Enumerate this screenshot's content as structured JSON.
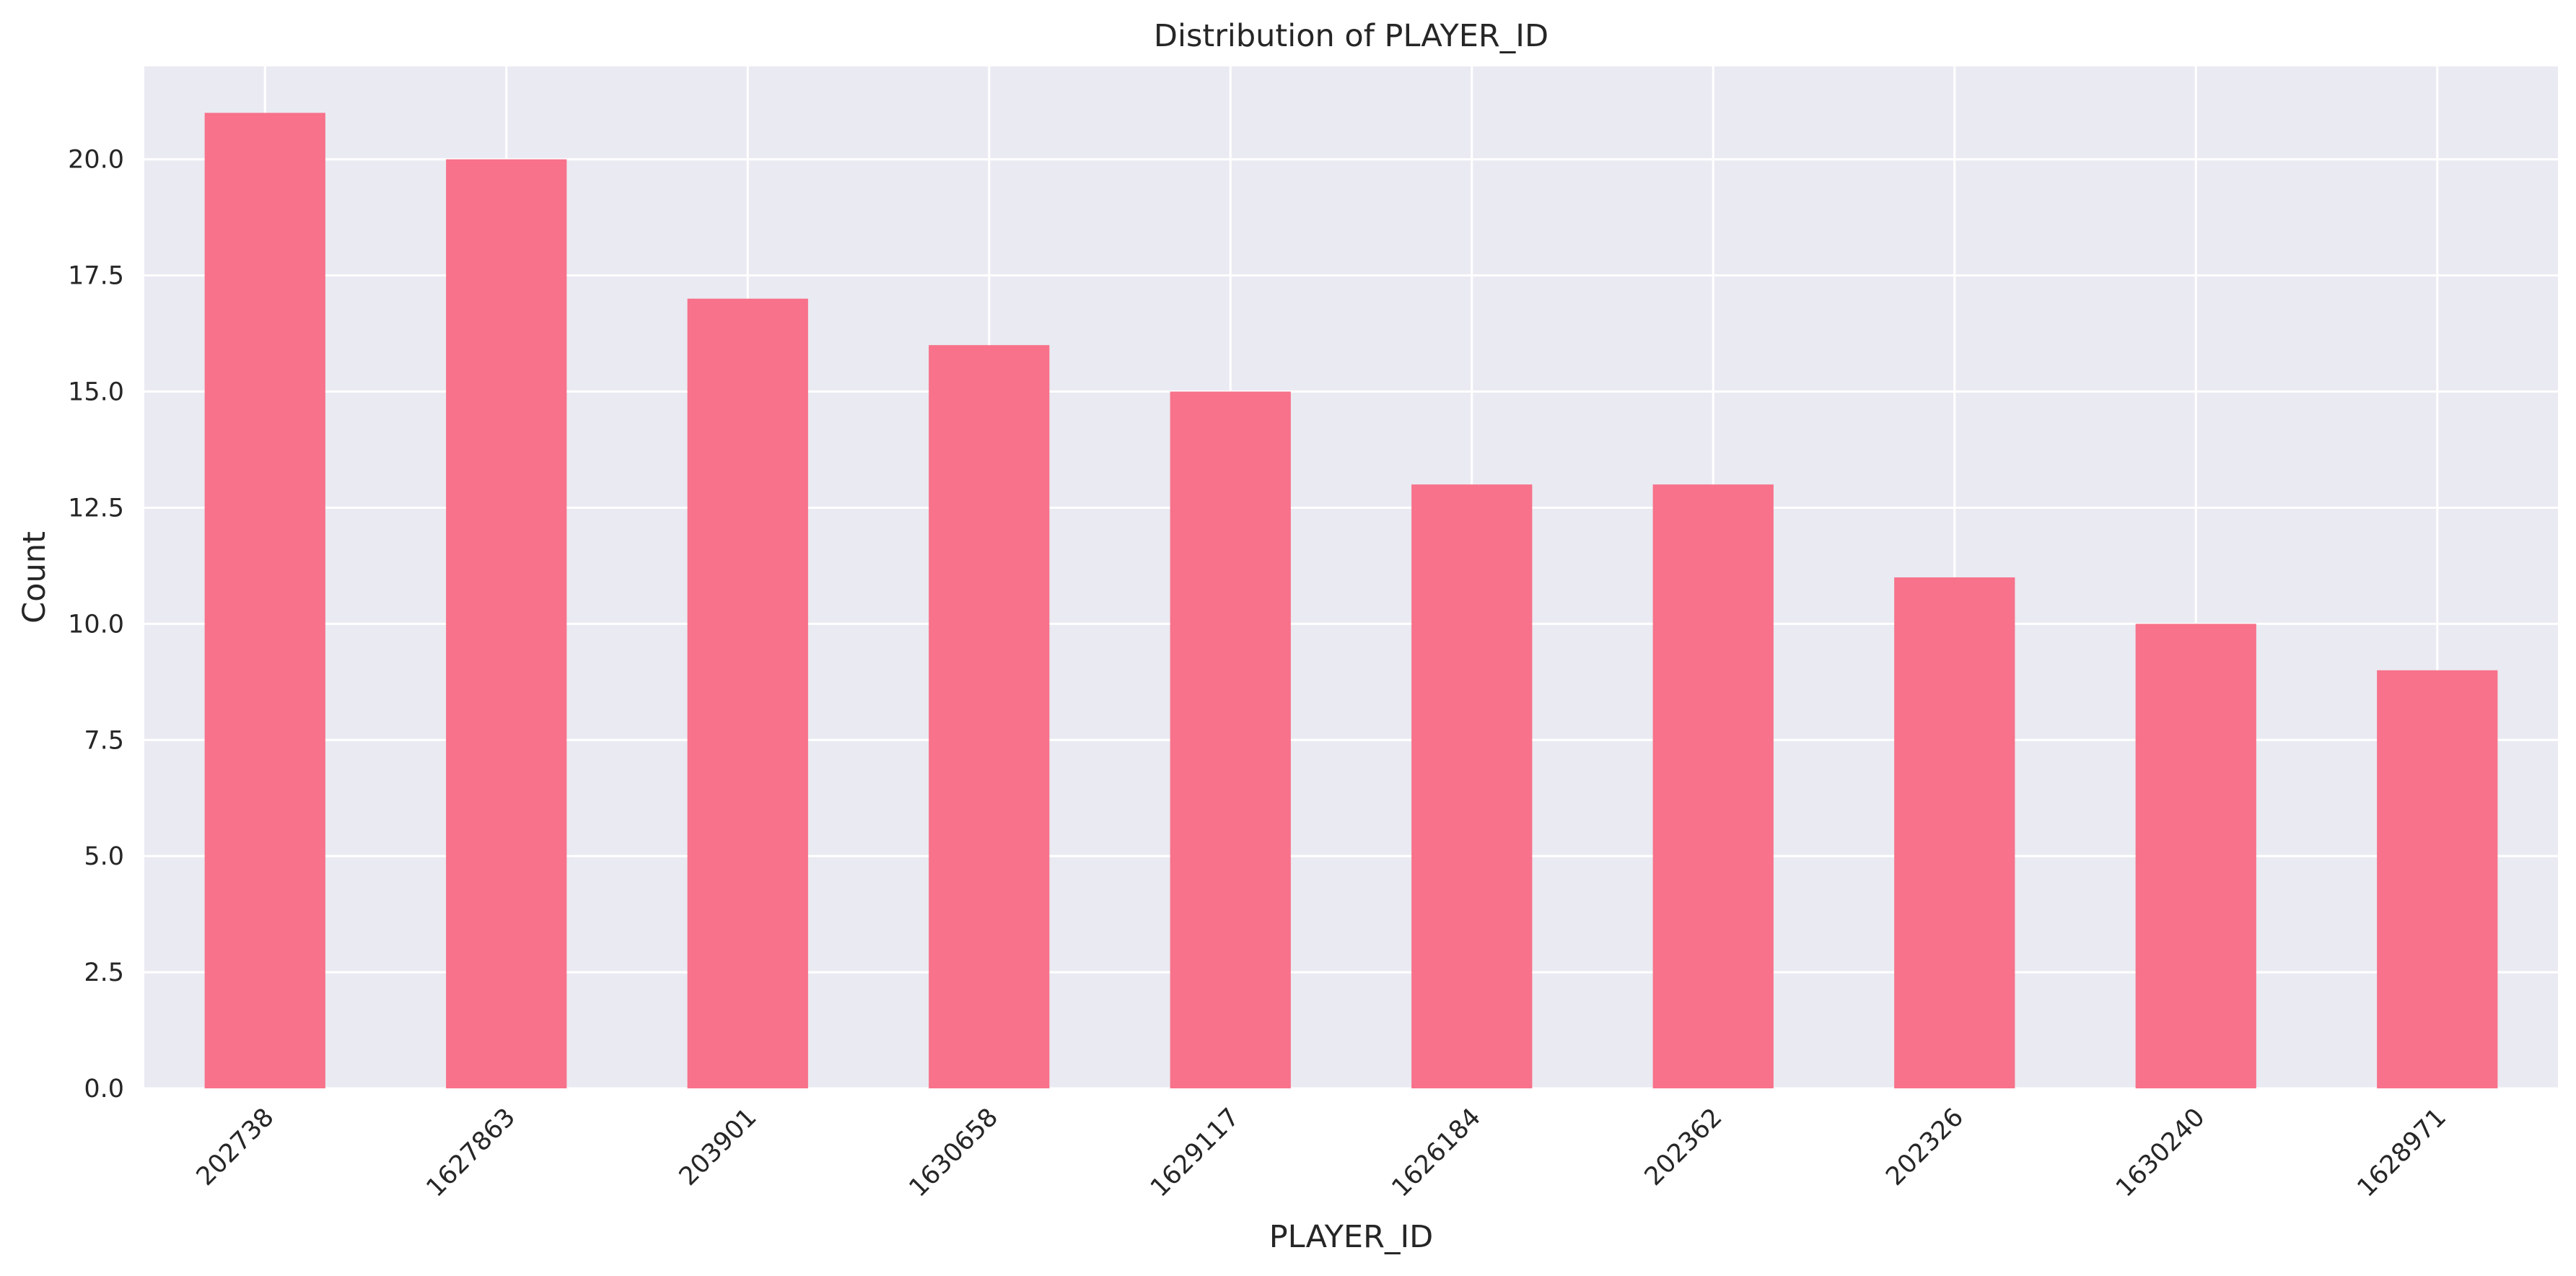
{
  "chart_data": {
    "type": "bar",
    "title": "Distribution of PLAYER_ID",
    "xlabel": "PLAYER_ID",
    "ylabel": "Count",
    "categories": [
      "202738",
      "1627863",
      "203901",
      "1630658",
      "1629117",
      "1626184",
      "202362",
      "202326",
      "1630240",
      "1628971"
    ],
    "values": [
      21,
      20,
      17,
      16,
      15,
      13,
      13,
      11,
      10,
      9
    ],
    "ylim": [
      0,
      22
    ],
    "yticks": [
      "0.0",
      "2.5",
      "5.0",
      "7.5",
      "10.0",
      "12.5",
      "15.0",
      "17.5",
      "20.0"
    ],
    "grid": true,
    "legend": "none",
    "colors": {
      "bar": "#f7728a",
      "plot_background": "#eaeaf2",
      "grid": "#ffffff",
      "text": "#262626"
    }
  }
}
